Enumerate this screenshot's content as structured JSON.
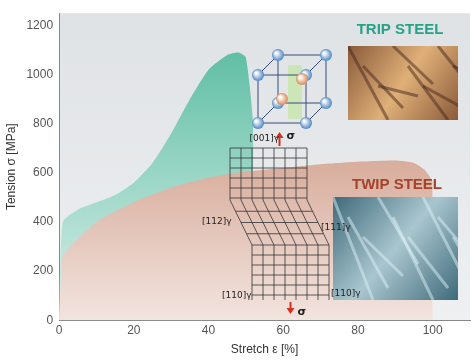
{
  "chart_data": {
    "type": "area",
    "x_label": "Stretch ε [%]",
    "y_label": "Tension σ [MPa]",
    "series": [
      {
        "name": "TRIP STEEL",
        "color": "#4fb79b",
        "x": [
          0,
          1,
          5,
          10,
          15,
          20,
          25,
          30,
          35,
          40,
          45,
          48,
          50,
          52,
          52
        ],
        "values": [
          0,
          400,
          450,
          480,
          510,
          560,
          640,
          760,
          900,
          1020,
          1080,
          1090,
          1070,
          780,
          0
        ]
      },
      {
        "name": "TWIP STEEL",
        "color": "#c07a5e",
        "x": [
          0,
          1,
          3,
          10,
          20,
          30,
          40,
          50,
          60,
          70,
          80,
          90,
          95,
          98,
          100,
          100
        ],
        "values": [
          0,
          260,
          300,
          400,
          480,
          540,
          580,
          605,
          620,
          635,
          645,
          650,
          640,
          610,
          560,
          0
        ]
      }
    ],
    "diagram_labels": [
      "[001]γ",
      "[112]γ",
      "[111]γ",
      "[110]γ",
      "[110]γ",
      "σ",
      "σ"
    ],
    "xlim": [
      0,
      110
    ],
    "xticks": [
      0,
      20,
      40,
      60,
      80,
      100
    ],
    "ylim": [
      0,
      1250
    ],
    "yticks": [
      0,
      200,
      400,
      600,
      800,
      1000,
      1200
    ],
    "grid": false
  }
}
